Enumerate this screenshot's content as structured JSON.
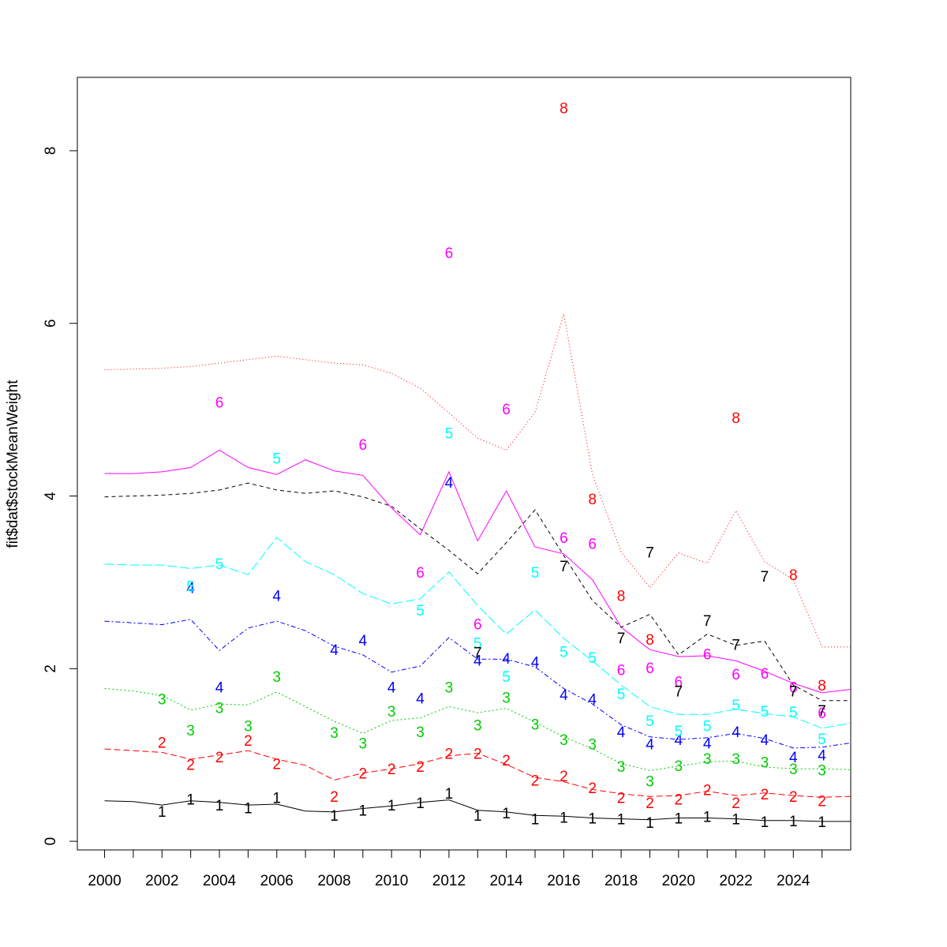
{
  "chart_data": {
    "type": "line",
    "title": "",
    "xlabel": "",
    "ylabel": "fit$dat$stockMeanWeight",
    "xlim": [
      1999.05,
      2026
    ],
    "ylim": [
      -0.1,
      8.85
    ],
    "grid": false,
    "legend": "none",
    "x": [
      2000,
      2001,
      2002,
      2003,
      2004,
      2005,
      2006,
      2007,
      2008,
      2009,
      2010,
      2011,
      2012,
      2013,
      2014,
      2015,
      2016,
      2017,
      2018,
      2019,
      2020,
      2021,
      2022,
      2023,
      2024,
      2025,
      2026
    ],
    "x_ticks": [
      2000,
      2001,
      2002,
      2003,
      2004,
      2005,
      2006,
      2007,
      2008,
      2009,
      2010,
      2011,
      2012,
      2013,
      2014,
      2015,
      2016,
      2017,
      2018,
      2019,
      2020,
      2021,
      2022,
      2023,
      2024,
      2025
    ],
    "x_tick_labels": [
      "2000",
      "",
      "2002",
      "",
      "2004",
      "",
      "2006",
      "",
      "2008",
      "",
      "2010",
      "",
      "2012",
      "",
      "2014",
      "",
      "2016",
      "",
      "2018",
      "",
      "2020",
      "",
      "2022",
      "",
      "2024",
      ""
    ],
    "y_ticks": [
      0,
      2,
      4,
      6,
      8
    ],
    "y_tick_labels": [
      "0",
      "2",
      "4",
      "6",
      "8"
    ],
    "series": [
      {
        "label": "1",
        "color": "#000000",
        "dash": "solid",
        "fitted": [
          0.47,
          0.46,
          0.42,
          0.47,
          0.45,
          0.42,
          0.43,
          0.35,
          0.34,
          0.38,
          0.41,
          0.45,
          0.48,
          0.36,
          0.34,
          0.3,
          0.29,
          0.27,
          0.26,
          0.25,
          0.27,
          0.27,
          0.26,
          0.24,
          0.24,
          0.23,
          0.23
        ],
        "obs_x": [
          2002,
          2003,
          2004,
          2005,
          2006,
          2008,
          2009,
          2010,
          2011,
          2012,
          2013,
          2014,
          2015,
          2016,
          2017,
          2018,
          2019,
          2020,
          2021,
          2022,
          2023,
          2024,
          2025
        ],
        "obs_y": [
          0.35,
          0.49,
          0.42,
          0.39,
          0.51,
          0.3,
          0.36,
          0.42,
          0.45,
          0.56,
          0.3,
          0.33,
          0.26,
          0.28,
          0.27,
          0.26,
          0.22,
          0.27,
          0.29,
          0.26,
          0.23,
          0.24,
          0.23
        ]
      },
      {
        "label": "2",
        "color": "#ff0000",
        "dash": "8,4",
        "fitted": [
          1.07,
          1.05,
          1.03,
          0.95,
          1.0,
          1.05,
          0.95,
          0.88,
          0.71,
          0.79,
          0.84,
          0.9,
          0.99,
          1.02,
          0.89,
          0.74,
          0.69,
          0.6,
          0.55,
          0.52,
          0.53,
          0.58,
          0.53,
          0.56,
          0.53,
          0.51,
          0.52
        ],
        "obs_x": [
          2002,
          2003,
          2004,
          2005,
          2006,
          2008,
          2009,
          2010,
          2011,
          2012,
          2013,
          2014,
          2015,
          2016,
          2017,
          2018,
          2019,
          2020,
          2021,
          2022,
          2023,
          2024,
          2025
        ],
        "obs_y": [
          1.15,
          0.89,
          0.98,
          1.17,
          0.9,
          0.52,
          0.79,
          0.84,
          0.87,
          1.02,
          1.02,
          0.94,
          0.71,
          0.76,
          0.62,
          0.51,
          0.45,
          0.49,
          0.6,
          0.45,
          0.55,
          0.52,
          0.47
        ]
      },
      {
        "label": "3",
        "color": "#00cc00",
        "dash": "2,3",
        "fitted": [
          1.77,
          1.74,
          1.69,
          1.52,
          1.59,
          1.58,
          1.73,
          1.56,
          1.39,
          1.25,
          1.4,
          1.43,
          1.56,
          1.49,
          1.54,
          1.38,
          1.21,
          1.07,
          0.9,
          0.82,
          0.87,
          0.92,
          0.93,
          0.86,
          0.84,
          0.84,
          0.83
        ],
        "obs_x": [
          2002,
          2003,
          2004,
          2005,
          2006,
          2008,
          2009,
          2010,
          2011,
          2012,
          2013,
          2014,
          2015,
          2016,
          2017,
          2018,
          2019,
          2020,
          2021,
          2022,
          2023,
          2024,
          2025
        ],
        "obs_y": [
          1.65,
          1.29,
          1.55,
          1.34,
          1.91,
          1.26,
          1.14,
          1.51,
          1.27,
          1.79,
          1.35,
          1.67,
          1.36,
          1.18,
          1.13,
          0.87,
          0.7,
          0.88,
          0.96,
          0.96,
          0.92,
          0.84,
          0.83
        ]
      },
      {
        "label": "4",
        "color": "#0000ff",
        "dash": "6,3,2,3",
        "fitted": [
          2.55,
          2.53,
          2.51,
          2.57,
          2.21,
          2.47,
          2.55,
          2.44,
          2.26,
          2.16,
          1.96,
          2.03,
          2.36,
          2.11,
          2.11,
          2.02,
          1.77,
          1.59,
          1.35,
          1.21,
          1.18,
          1.2,
          1.25,
          1.19,
          1.08,
          1.09,
          1.14
        ],
        "obs_x": [
          2003,
          2004,
          2006,
          2008,
          2009,
          2010,
          2011,
          2012,
          2013,
          2014,
          2015,
          2016,
          2017,
          2018,
          2019,
          2020,
          2021,
          2022,
          2023,
          2024,
          2025
        ],
        "obs_y": [
          2.94,
          1.79,
          2.85,
          2.22,
          2.33,
          1.79,
          1.66,
          4.16,
          2.1,
          2.12,
          2.08,
          1.7,
          1.65,
          1.27,
          1.13,
          1.18,
          1.14,
          1.27,
          1.18,
          0.98,
          1.0
        ]
      },
      {
        "label": "5",
        "color": "#00ffff",
        "dash": "12,4",
        "fitted": [
          3.21,
          3.2,
          3.2,
          3.16,
          3.2,
          3.09,
          3.52,
          3.24,
          3.09,
          2.87,
          2.75,
          2.81,
          3.12,
          2.73,
          2.4,
          2.68,
          2.35,
          2.09,
          1.81,
          1.56,
          1.47,
          1.47,
          1.53,
          1.48,
          1.44,
          1.31,
          1.37
        ],
        "obs_x": [
          2003,
          2004,
          2006,
          2011,
          2012,
          2013,
          2014,
          2015,
          2016,
          2017,
          2018,
          2019,
          2020,
          2021,
          2022,
          2023,
          2024,
          2025
        ],
        "obs_y": [
          2.96,
          3.22,
          4.44,
          2.68,
          4.73,
          2.3,
          1.91,
          3.12,
          2.2,
          2.13,
          1.71,
          1.4,
          1.28,
          1.34,
          1.58,
          1.51,
          1.5,
          1.19
        ]
      },
      {
        "label": "6",
        "color": "#ff00ff",
        "dash": "solid",
        "fitted": [
          4.26,
          4.26,
          4.28,
          4.33,
          4.53,
          4.33,
          4.25,
          4.42,
          4.29,
          4.24,
          3.86,
          3.55,
          4.28,
          3.48,
          4.06,
          3.41,
          3.33,
          3.03,
          2.48,
          2.22,
          2.14,
          2.15,
          2.09,
          1.97,
          1.83,
          1.72,
          1.76
        ],
        "obs_x": [
          2004,
          2009,
          2011,
          2012,
          2013,
          2014,
          2016,
          2017,
          2018,
          2019,
          2020,
          2021,
          2022,
          2023,
          2024,
          2025
        ],
        "obs_y": [
          5.09,
          4.6,
          3.12,
          6.82,
          2.52,
          5.01,
          3.52,
          3.45,
          1.99,
          2.01,
          1.85,
          2.17,
          1.94,
          1.95,
          1.79,
          1.49
        ]
      },
      {
        "label": "7",
        "color": "#000000",
        "dash": "5,4",
        "fitted": [
          3.99,
          4.0,
          4.01,
          4.03,
          4.07,
          4.15,
          4.07,
          4.03,
          4.06,
          3.99,
          3.88,
          3.62,
          3.37,
          3.1,
          3.46,
          3.84,
          3.31,
          2.79,
          2.48,
          2.63,
          2.16,
          2.4,
          2.27,
          2.32,
          1.81,
          1.63,
          1.63
        ],
        "obs_x": [
          2013,
          2016,
          2018,
          2019,
          2020,
          2021,
          2022,
          2023,
          2024,
          2025
        ],
        "obs_y": [
          2.19,
          3.19,
          2.36,
          3.35,
          1.74,
          2.56,
          2.28,
          3.07,
          1.74,
          1.52
        ]
      },
      {
        "label": "8",
        "color": "#ff0000",
        "dash": "1,3",
        "fitted": [
          5.46,
          5.47,
          5.48,
          5.5,
          5.54,
          5.58,
          5.62,
          5.58,
          5.54,
          5.52,
          5.42,
          5.25,
          4.96,
          4.67,
          4.53,
          4.97,
          6.11,
          4.25,
          3.35,
          2.94,
          3.34,
          3.22,
          3.83,
          3.24,
          3.03,
          2.25,
          2.25
        ],
        "obs_x": [
          2016,
          2017,
          2018,
          2019,
          2022,
          2024,
          2025
        ],
        "obs_y": [
          8.5,
          3.97,
          2.85,
          2.34,
          4.91,
          3.09,
          1.81
        ]
      }
    ]
  }
}
